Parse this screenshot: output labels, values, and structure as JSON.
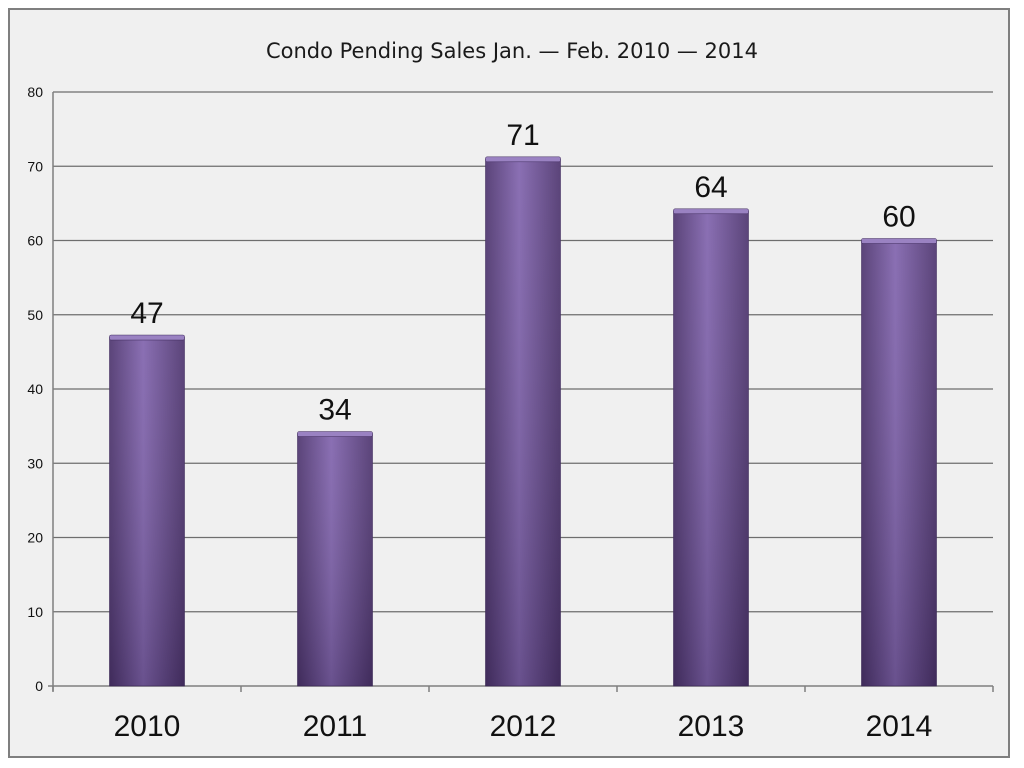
{
  "chart_data": {
    "type": "bar",
    "title": "Condo Pending Sales Jan. — Feb.  2010 — 2014",
    "categories": [
      "2010",
      "2011",
      "2012",
      "2013",
      "2014"
    ],
    "values": [
      47,
      34,
      71,
      64,
      60
    ],
    "data_labels": [
      "47",
      "34",
      "71",
      "64",
      "60"
    ],
    "ylim": [
      0,
      80
    ],
    "yticks": [
      0,
      10,
      20,
      30,
      40,
      50,
      60,
      70,
      80
    ],
    "xlabel": "",
    "ylabel": "",
    "grid": true,
    "legend": "none",
    "colors": {
      "bar": "#6a4b96",
      "bar_light": "#8063ad",
      "bar_dark": "#4d346e",
      "plot_background": "#f0f0f0",
      "gridline": "#6e6e6e",
      "axis": "#7f7f7f",
      "text": "#111111"
    }
  }
}
